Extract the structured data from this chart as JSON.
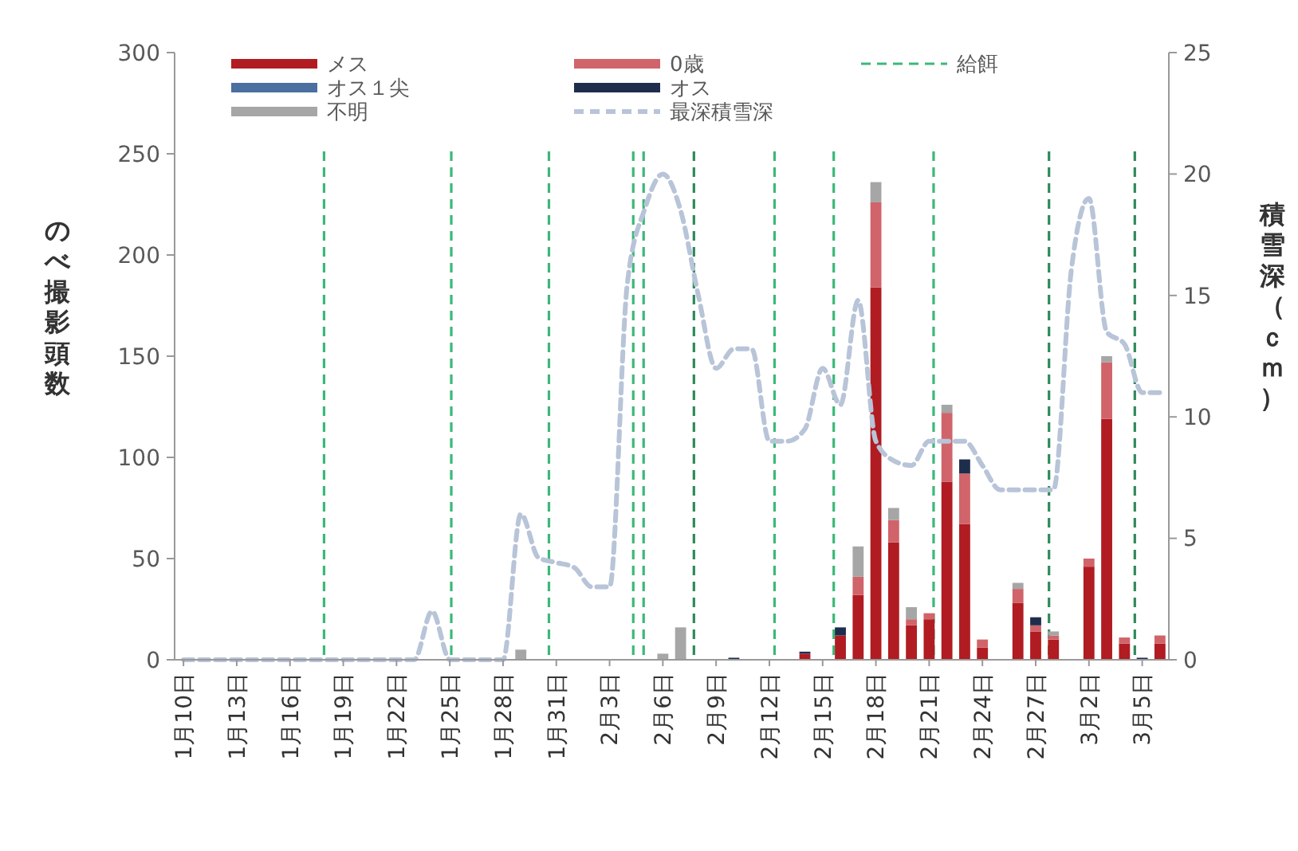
{
  "chart_data": {
    "type": "bar",
    "stacked": true,
    "ylabel": "のべ撮影頭数",
    "y2label": "積雪深（ｃｍ）",
    "x": [
      "--01-10",
      "--01-11",
      "--01-12",
      "--01-13",
      "--01-14",
      "--01-15",
      "--01-16",
      "--01-17",
      "--01-18",
      "--01-19",
      "--01-20",
      "--01-21",
      "--01-22",
      "--01-23",
      "--01-24",
      "--01-25",
      "--01-26",
      "--01-27",
      "--01-28",
      "--01-29",
      "--01-30",
      "--01-31",
      "--02-01",
      "--02-02",
      "--02-03",
      "--02-04",
      "--02-05",
      "--02-06",
      "--02-07",
      "--02-08",
      "--02-09",
      "--02-10",
      "--02-11",
      "--02-12",
      "--02-13",
      "--02-14",
      "--02-15",
      "--02-16",
      "--02-17",
      "--02-18",
      "--02-19",
      "--02-20",
      "--02-21",
      "--02-22",
      "--02-23",
      "--02-24",
      "--02-25",
      "--02-26",
      "--02-27",
      "--02-28",
      "--03-01",
      "--03-02",
      "--03-03",
      "--03-04",
      "--03-05",
      "--03-06"
    ],
    "xlim": [
      "--01-09T12:00",
      "--03-06T12:00"
    ],
    "xticks": [
      {
        "value": "--01-10",
        "label": "1月10日"
      },
      {
        "value": "--01-13",
        "label": "1月13日"
      },
      {
        "value": "--01-16",
        "label": "1月16日"
      },
      {
        "value": "--01-19",
        "label": "1月19日"
      },
      {
        "value": "--01-22",
        "label": "1月22日"
      },
      {
        "value": "--01-25",
        "label": "1月25日"
      },
      {
        "value": "--01-28",
        "label": "1月28日"
      },
      {
        "value": "--01-31",
        "label": "1月31日"
      },
      {
        "value": "--02-03",
        "label": "2月3日"
      },
      {
        "value": "--02-06",
        "label": "2月6日"
      },
      {
        "value": "--02-09",
        "label": "2月9日"
      },
      {
        "value": "--02-12",
        "label": "2月12日"
      },
      {
        "value": "--02-15",
        "label": "2月15日"
      },
      {
        "value": "--02-18",
        "label": "2月18日"
      },
      {
        "value": "--02-21",
        "label": "2月21日"
      },
      {
        "value": "--02-24",
        "label": "2月24日"
      },
      {
        "value": "--02-27",
        "label": "2月27日"
      },
      {
        "value": "--03-02",
        "label": "3月2日"
      },
      {
        "value": "--03-05",
        "label": "3月5日"
      }
    ],
    "ylim": [
      0,
      300
    ],
    "yticks": [
      0,
      50,
      100,
      150,
      200,
      250,
      300
    ],
    "y2lim": [
      0,
      25
    ],
    "y2ticks": [
      0,
      5,
      10,
      15,
      20,
      25
    ],
    "legend": "top",
    "grid": false,
    "series": [
      {
        "name": "メス",
        "color": "#b01c22",
        "values": [
          0,
          0,
          0,
          0,
          0,
          0,
          0,
          0,
          0,
          0,
          0,
          0,
          0,
          0,
          0,
          0,
          0,
          0,
          0,
          0,
          0,
          0,
          0,
          0,
          0,
          0,
          0,
          0,
          0,
          0,
          0,
          0,
          0,
          0,
          0,
          3,
          0,
          12,
          32,
          184,
          58,
          17,
          20,
          88,
          67,
          6,
          0,
          28,
          14,
          10,
          0,
          46,
          119,
          8,
          0,
          8
        ]
      },
      {
        "name": "0歳",
        "color": "#d0646a",
        "values": [
          0,
          0,
          0,
          0,
          0,
          0,
          0,
          0,
          0,
          0,
          0,
          0,
          0,
          0,
          0,
          0,
          0,
          0,
          0,
          0,
          0,
          0,
          0,
          0,
          0,
          0,
          0,
          0,
          0,
          0,
          0,
          0,
          0,
          0,
          0,
          0,
          0,
          0,
          9,
          42,
          11,
          3,
          3,
          34,
          25,
          4,
          0,
          7,
          3,
          2,
          0,
          4,
          28,
          3,
          0,
          4
        ]
      },
      {
        "name": "オス１尖",
        "color": "#4a6fa0",
        "values": [
          0,
          0,
          0,
          0,
          0,
          0,
          0,
          0,
          0,
          0,
          0,
          0,
          0,
          0,
          0,
          0,
          0,
          0,
          0,
          0,
          0,
          0,
          0,
          0,
          0,
          0,
          0,
          0,
          0,
          0,
          0,
          0,
          0,
          0,
          0,
          0,
          0,
          0,
          0,
          0,
          0,
          0,
          0,
          0,
          0,
          0,
          0,
          0,
          0,
          0,
          0,
          0,
          0,
          0,
          0,
          0
        ]
      },
      {
        "name": "オス",
        "color": "#1f2d4d",
        "values": [
          0,
          0,
          0,
          0,
          0,
          0,
          0,
          0,
          0,
          0,
          0,
          0,
          0,
          0,
          0,
          0,
          0,
          0,
          0,
          0,
          0,
          0,
          0,
          0,
          0,
          0,
          0,
          0,
          0,
          0,
          0,
          1,
          0,
          0,
          0,
          1,
          0,
          4,
          0,
          0,
          0,
          0,
          0,
          0,
          7,
          0,
          0,
          0,
          4,
          0,
          0,
          0,
          0,
          0,
          1,
          0
        ]
      },
      {
        "name": "不明",
        "color": "#a6a6a6",
        "values": [
          0,
          0,
          0,
          0,
          0,
          0,
          0,
          0,
          0,
          0,
          0,
          0,
          0,
          0,
          0,
          0,
          0,
          0,
          0,
          5,
          0,
          0,
          0,
          0,
          0,
          0,
          0,
          3,
          16,
          0,
          0,
          0,
          0,
          0,
          0,
          0,
          0,
          0,
          15,
          10,
          6,
          6,
          0,
          4,
          0,
          0,
          0,
          3,
          0,
          2,
          0,
          0,
          3,
          0,
          0,
          0
        ]
      },
      {
        "name": "最深積雪深",
        "type": "line",
        "axis": "y2",
        "color": "#b8c4d8",
        "line_style": "dashed",
        "marker": "none",
        "values": [
          0,
          0,
          0,
          0,
          0,
          0,
          0,
          0,
          0,
          0,
          0,
          0,
          0,
          0,
          2,
          0,
          0,
          0,
          0,
          6,
          4.2,
          4,
          3.8,
          3,
          3,
          15.5,
          18.6,
          20,
          18.5,
          15,
          12,
          12.8,
          12.8,
          9,
          9,
          9.5,
          12,
          10.5,
          14.8,
          9,
          8.2,
          8,
          9,
          9,
          9,
          8,
          7,
          7,
          7,
          7,
          16,
          19,
          13.5,
          13,
          11,
          11
        ]
      }
    ],
    "ref_lines": [
      {
        "axis": "x",
        "value": "--01-17T22:00",
        "label": "給餌",
        "color": "#3cb878",
        "line_style": "dashed"
      },
      {
        "axis": "x",
        "value": "--01-25T02:00",
        "color": "#3cb878",
        "line_style": "dashed"
      },
      {
        "axis": "x",
        "value": "--01-30T14:00",
        "color": "#3cb878",
        "line_style": "dashed"
      },
      {
        "axis": "x",
        "value": "--02-04T08:00",
        "color": "#3cb878",
        "line_style": "dashed"
      },
      {
        "axis": "x",
        "value": "--02-04T22:00",
        "color": "#3cb878",
        "line_style": "dashed"
      },
      {
        "axis": "x",
        "value": "--02-07T18:00",
        "color": "#2e8a5a",
        "line_style": "dashed"
      },
      {
        "axis": "x",
        "value": "--02-12T07:00",
        "color": "#3cb878",
        "line_style": "dashed"
      },
      {
        "axis": "x",
        "value": "--02-15T15:00",
        "color": "#3cb878",
        "line_style": "dashed"
      },
      {
        "axis": "x",
        "value": "--02-21T06:00",
        "color": "#3cb878",
        "line_style": "dashed"
      },
      {
        "axis": "x",
        "value": "--02-27T18:00",
        "color": "#2e8a5a",
        "line_style": "dashed"
      },
      {
        "axis": "x",
        "value": "--03-04T14:00",
        "color": "#2e8a5a",
        "line_style": "dashed"
      }
    ]
  }
}
